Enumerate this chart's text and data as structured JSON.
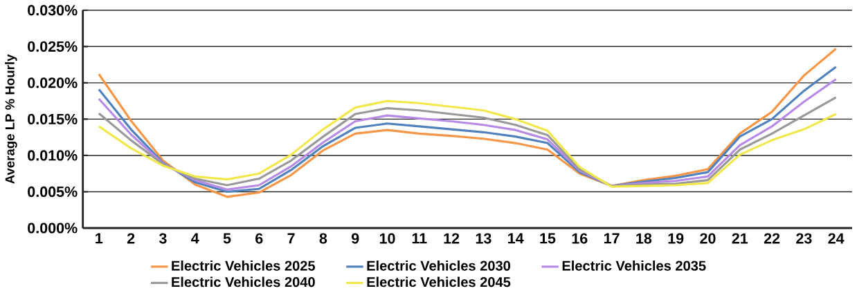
{
  "chart_data": {
    "type": "line",
    "ylabel": "Average LP % Hourly",
    "categories": [
      "1",
      "2",
      "3",
      "4",
      "5",
      "6",
      "7",
      "8",
      "9",
      "10",
      "11",
      "12",
      "13",
      "14",
      "15",
      "16",
      "17",
      "18",
      "19",
      "20",
      "21",
      "22",
      "23",
      "24"
    ],
    "series": [
      {
        "name": "Electric Vehicles 2025",
        "color": "#f79646",
        "values": [
          0.0212,
          0.0148,
          0.0093,
          0.006,
          0.0043,
          0.0049,
          0.0073,
          0.0107,
          0.013,
          0.0135,
          0.013,
          0.0127,
          0.0123,
          0.0117,
          0.0108,
          0.0075,
          0.0058,
          0.0066,
          0.0072,
          0.0081,
          0.013,
          0.016,
          0.021,
          0.0247
        ]
      },
      {
        "name": "Electric Vehicles 2030",
        "color": "#4f81bd",
        "values": [
          0.0191,
          0.0136,
          0.009,
          0.0063,
          0.005,
          0.0054,
          0.008,
          0.0113,
          0.0138,
          0.0144,
          0.014,
          0.0136,
          0.0132,
          0.0126,
          0.0117,
          0.0077,
          0.0058,
          0.0064,
          0.0069,
          0.0077,
          0.0126,
          0.015,
          0.0189,
          0.0222
        ]
      },
      {
        "name": "Electric Vehicles 2035",
        "color": "#b68ae6",
        "values": [
          0.0178,
          0.0129,
          0.0089,
          0.0066,
          0.0053,
          0.0059,
          0.0085,
          0.0118,
          0.0147,
          0.0155,
          0.0151,
          0.0147,
          0.0142,
          0.0135,
          0.0122,
          0.0079,
          0.0058,
          0.0062,
          0.0065,
          0.0071,
          0.0114,
          0.014,
          0.0174,
          0.0205
        ]
      },
      {
        "name": "Electric Vehicles 2040",
        "color": "#999999",
        "values": [
          0.0158,
          0.0121,
          0.0088,
          0.0068,
          0.0059,
          0.0068,
          0.0093,
          0.0126,
          0.0157,
          0.0165,
          0.0162,
          0.0157,
          0.0152,
          0.0142,
          0.0128,
          0.0081,
          0.0058,
          0.006,
          0.0061,
          0.0066,
          0.0108,
          0.013,
          0.0155,
          0.018
        ]
      },
      {
        "name": "Electric Vehicles 2045",
        "color": "#f2e84b",
        "values": [
          0.014,
          0.011,
          0.0086,
          0.0071,
          0.0067,
          0.0075,
          0.0101,
          0.0136,
          0.0166,
          0.0175,
          0.0172,
          0.0167,
          0.0162,
          0.015,
          0.0134,
          0.0084,
          0.0057,
          0.0058,
          0.0059,
          0.0062,
          0.0101,
          0.0121,
          0.0136,
          0.0157
        ]
      }
    ],
    "ylim": [
      0,
      0.03
    ],
    "yticks": [
      {
        "value": 0,
        "label": "0.000%"
      },
      {
        "value": 0.005,
        "label": "0.005%"
      },
      {
        "value": 0.01,
        "label": "0.010%"
      },
      {
        "value": 0.015,
        "label": "0.015%"
      },
      {
        "value": 0.02,
        "label": "0.020%"
      },
      {
        "value": 0.025,
        "label": "0.025%"
      },
      {
        "value": 0.03,
        "label": "0.030%"
      }
    ],
    "grid": "y",
    "legend": "bottom",
    "marker": "none",
    "line_style": "solid"
  }
}
